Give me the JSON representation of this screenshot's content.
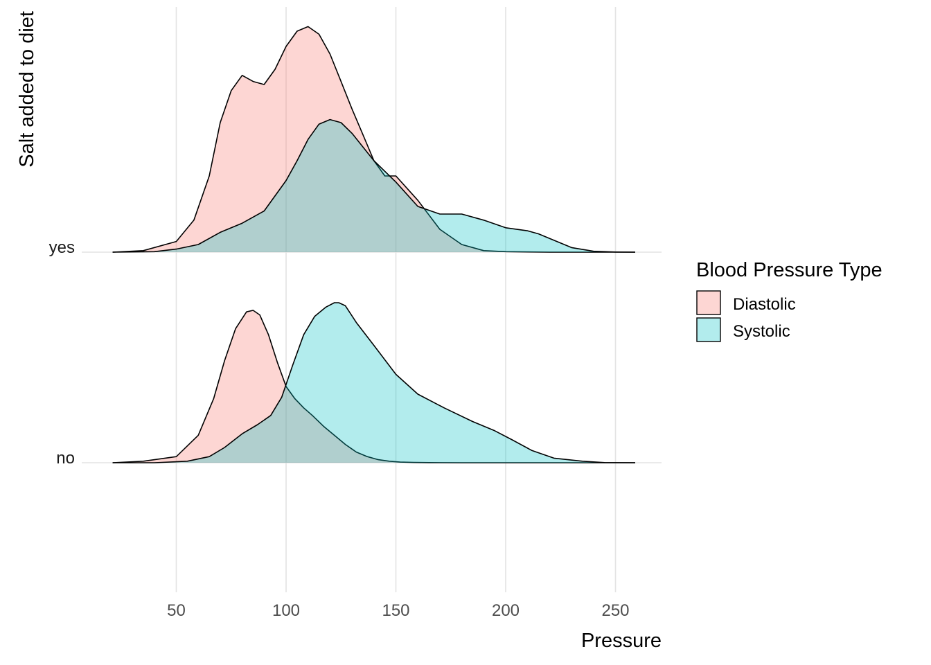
{
  "chart_data": {
    "type": "ridgeline",
    "xlabel": "Pressure",
    "ylabel": "Salt added to diet",
    "xlim": [
      0,
      270
    ],
    "x_ticks": [
      50,
      100,
      150,
      200,
      250
    ],
    "x_tick_labels": [
      "50",
      "100",
      "150",
      "200",
      "250"
    ],
    "categories": [
      "no",
      "yes"
    ],
    "grid": true,
    "legend": {
      "title": "Blood Pressure Type",
      "position": "right",
      "entries": [
        {
          "label": "Diastolic",
          "color": "#F8766D"
        },
        {
          "label": "Systolic",
          "color": "#00BFC4"
        }
      ]
    },
    "fill_opacity": 0.3,
    "series": [
      {
        "name": "Diastolic",
        "category": "no",
        "color": "#F8766D",
        "x": [
          21,
          35,
          50,
          60,
          67,
          72,
          77,
          82,
          85,
          88,
          92,
          96,
          100,
          104,
          108,
          112,
          117,
          122,
          127,
          132,
          137,
          142,
          147,
          152,
          158,
          165,
          180,
          200,
          230,
          259
        ],
        "density": [
          0,
          0.01,
          0.04,
          0.18,
          0.42,
          0.67,
          0.88,
          0.99,
          1.0,
          0.97,
          0.84,
          0.66,
          0.5,
          0.42,
          0.36,
          0.31,
          0.24,
          0.18,
          0.12,
          0.07,
          0.04,
          0.02,
          0.01,
          0.004,
          0.002,
          0.001,
          0,
          0,
          0,
          0
        ]
      },
      {
        "name": "Systolic",
        "category": "no",
        "color": "#00BFC4",
        "x": [
          21,
          40,
          55,
          65,
          72,
          80,
          87,
          93,
          98,
          103,
          108,
          113,
          118,
          122,
          124,
          127,
          132,
          140,
          150,
          160,
          172,
          185,
          195,
          203,
          212,
          222,
          235,
          245,
          259
        ],
        "density": [
          0,
          0,
          0.01,
          0.04,
          0.1,
          0.19,
          0.25,
          0.31,
          0.43,
          0.64,
          0.84,
          0.96,
          1.02,
          1.05,
          1.05,
          1.03,
          0.92,
          0.77,
          0.58,
          0.45,
          0.36,
          0.27,
          0.21,
          0.15,
          0.08,
          0.03,
          0.01,
          0.001,
          0
        ]
      },
      {
        "name": "Diastolic",
        "category": "yes",
        "color": "#F8766D",
        "x": [
          21,
          35,
          50,
          58,
          65,
          70,
          75,
          80,
          85,
          90,
          95,
          100,
          105,
          110,
          115,
          120,
          125,
          130,
          135,
          140,
          145,
          150,
          160,
          170,
          180,
          190,
          200,
          220,
          240,
          259
        ],
        "density": [
          0,
          0.01,
          0.07,
          0.21,
          0.5,
          0.85,
          1.06,
          1.16,
          1.12,
          1.1,
          1.2,
          1.35,
          1.45,
          1.48,
          1.43,
          1.3,
          1.12,
          0.94,
          0.77,
          0.6,
          0.5,
          0.5,
          0.34,
          0.15,
          0.05,
          0.01,
          0.003,
          0,
          0,
          0
        ]
      },
      {
        "name": "Systolic",
        "category": "yes",
        "color": "#00BFC4",
        "x": [
          21,
          40,
          50,
          60,
          70,
          80,
          90,
          100,
          105,
          110,
          115,
          120,
          125,
          130,
          140,
          150,
          160,
          170,
          180,
          190,
          200,
          210,
          215,
          220,
          230,
          240,
          250,
          259
        ],
        "density": [
          0,
          0.003,
          0.02,
          0.05,
          0.13,
          0.19,
          0.27,
          0.47,
          0.6,
          0.74,
          0.84,
          0.87,
          0.85,
          0.78,
          0.6,
          0.46,
          0.3,
          0.25,
          0.25,
          0.21,
          0.16,
          0.14,
          0.12,
          0.09,
          0.03,
          0.006,
          0.001,
          0
        ],
        "note_offset": 0
      }
    ]
  }
}
